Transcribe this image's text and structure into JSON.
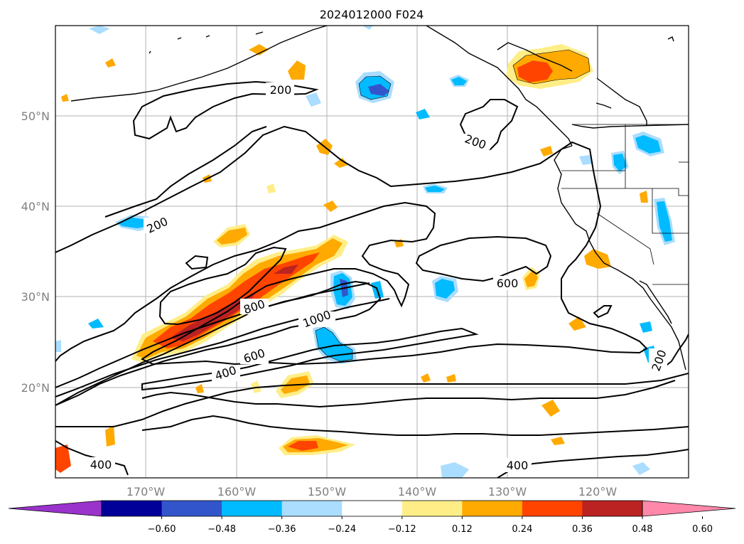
{
  "title": "2024012000 F024",
  "map": {
    "lon_labels": [
      "170°W",
      "160°W",
      "150°W",
      "140°W",
      "130°W",
      "120°W"
    ],
    "lat_labels": [
      "50°N",
      "40°N",
      "30°N",
      "20°N"
    ],
    "contour_labels": [
      "200",
      "200",
      "200",
      "200",
      "400",
      "400",
      "400",
      "600",
      "600",
      "800",
      "1000"
    ],
    "colors": {
      "ocean": "#ffffff",
      "grid": "#b0b0b0",
      "coast": "#000000",
      "contour": "#000000"
    }
  },
  "colorbar": {
    "ticks": [
      "−0.60",
      "−0.48",
      "−0.36",
      "−0.24",
      "−0.12",
      "0.12",
      "0.24",
      "0.36",
      "0.48",
      "0.60"
    ],
    "colors": [
      "#9933cc",
      "#000099",
      "#3355cc",
      "#00bbff",
      "#aaddff",
      "#ffffff",
      "#ffee88",
      "#ffaa00",
      "#ff4400",
      "#bb2222",
      "#ff88aa"
    ]
  }
}
